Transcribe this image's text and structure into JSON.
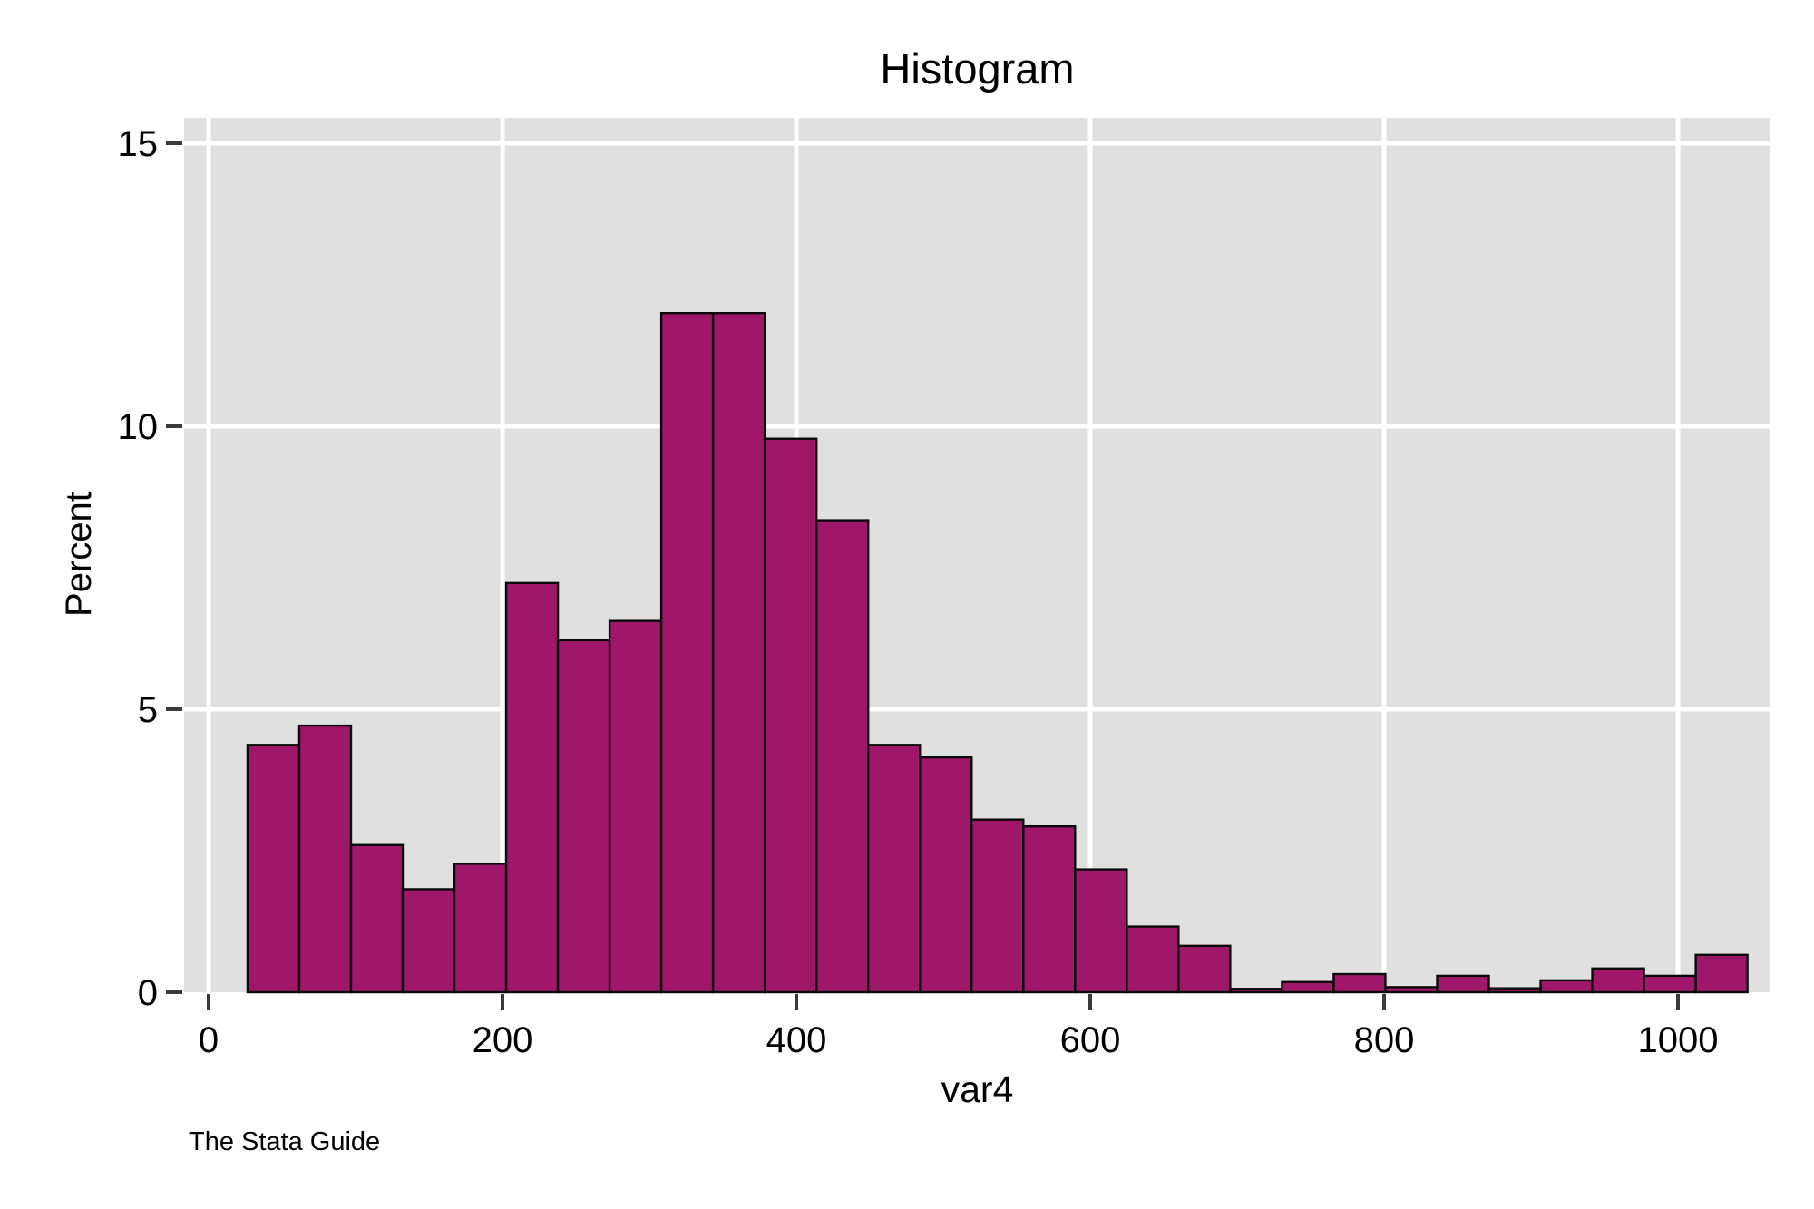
{
  "chart_data": {
    "type": "bar",
    "subtype": "histogram",
    "title": "Histogram",
    "xlabel": "var4",
    "ylabel": "Percent",
    "footer": "The Stata Guide",
    "bin_start": 26.5,
    "bin_width": 35.2,
    "percents": [
      4.37,
      4.71,
      2.6,
      1.82,
      2.27,
      7.23,
      6.22,
      6.56,
      12.0,
      12.0,
      9.78,
      8.34,
      4.37,
      4.15,
      3.05,
      2.93,
      2.17,
      1.16,
      0.82,
      0.06,
      0.18,
      0.32,
      0.09,
      0.29,
      0.07,
      0.21,
      0.42,
      0.29,
      0.66
    ],
    "x_ticks": [
      0,
      200,
      400,
      600,
      800,
      1000
    ],
    "y_ticks": [
      0,
      5,
      10,
      15
    ],
    "x_range": [
      -17,
      1063
    ],
    "ylim": [
      0,
      15.45
    ],
    "grid": true,
    "legend": "none",
    "colors": {
      "bar_fill": "#9e1768",
      "bar_stroke": "#0a0a0a",
      "plot_bg": "#e0e0e0",
      "gridline": "#ffffff",
      "tick": "#3a3a3a",
      "text": "#000000",
      "page_bg": "#ffffff"
    }
  }
}
